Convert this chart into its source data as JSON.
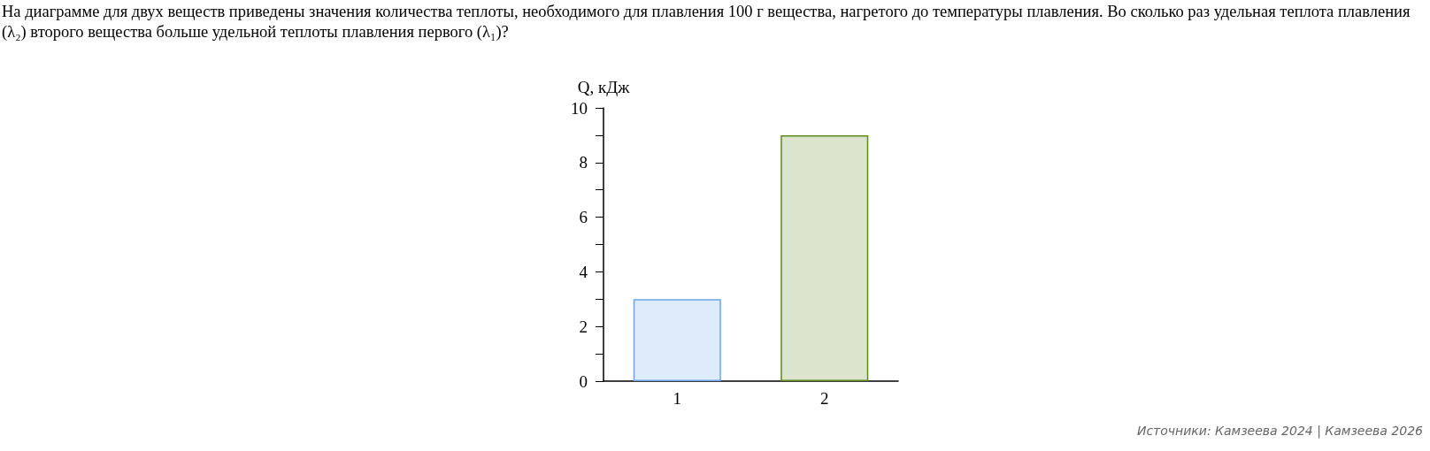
{
  "chart_data": {
    "type": "bar",
    "title": "На диаграмме для двух веществ приведены значения количества теплоты, необходимого для плавления 100 г вещества, нагретого до температуры плавления. Во сколько раз удельная теплота плавления (λ₂) второго вещества больше удельной теплоты плавления первого (λ₁)?",
    "ylabel": "Q, кДж",
    "categories": [
      "1",
      "2"
    ],
    "values": [
      3,
      9
    ],
    "colors": [
      "#6aa6e8",
      "#5a8a1e"
    ],
    "ylim": [
      0,
      10
    ],
    "yticks": [
      0,
      {
        "value": 1,
        "label": null
      },
      2,
      {
        "value": 3,
        "label": null
      },
      4,
      {
        "value": 5,
        "label": null
      },
      6,
      {
        "value": 7,
        "label": null
      },
      8,
      {
        "value": 9,
        "label": null
      },
      10
    ],
    "grid": false,
    "annotations": [
      "Источники: Камзеева 2024 | Камзеева 2026"
    ]
  }
}
